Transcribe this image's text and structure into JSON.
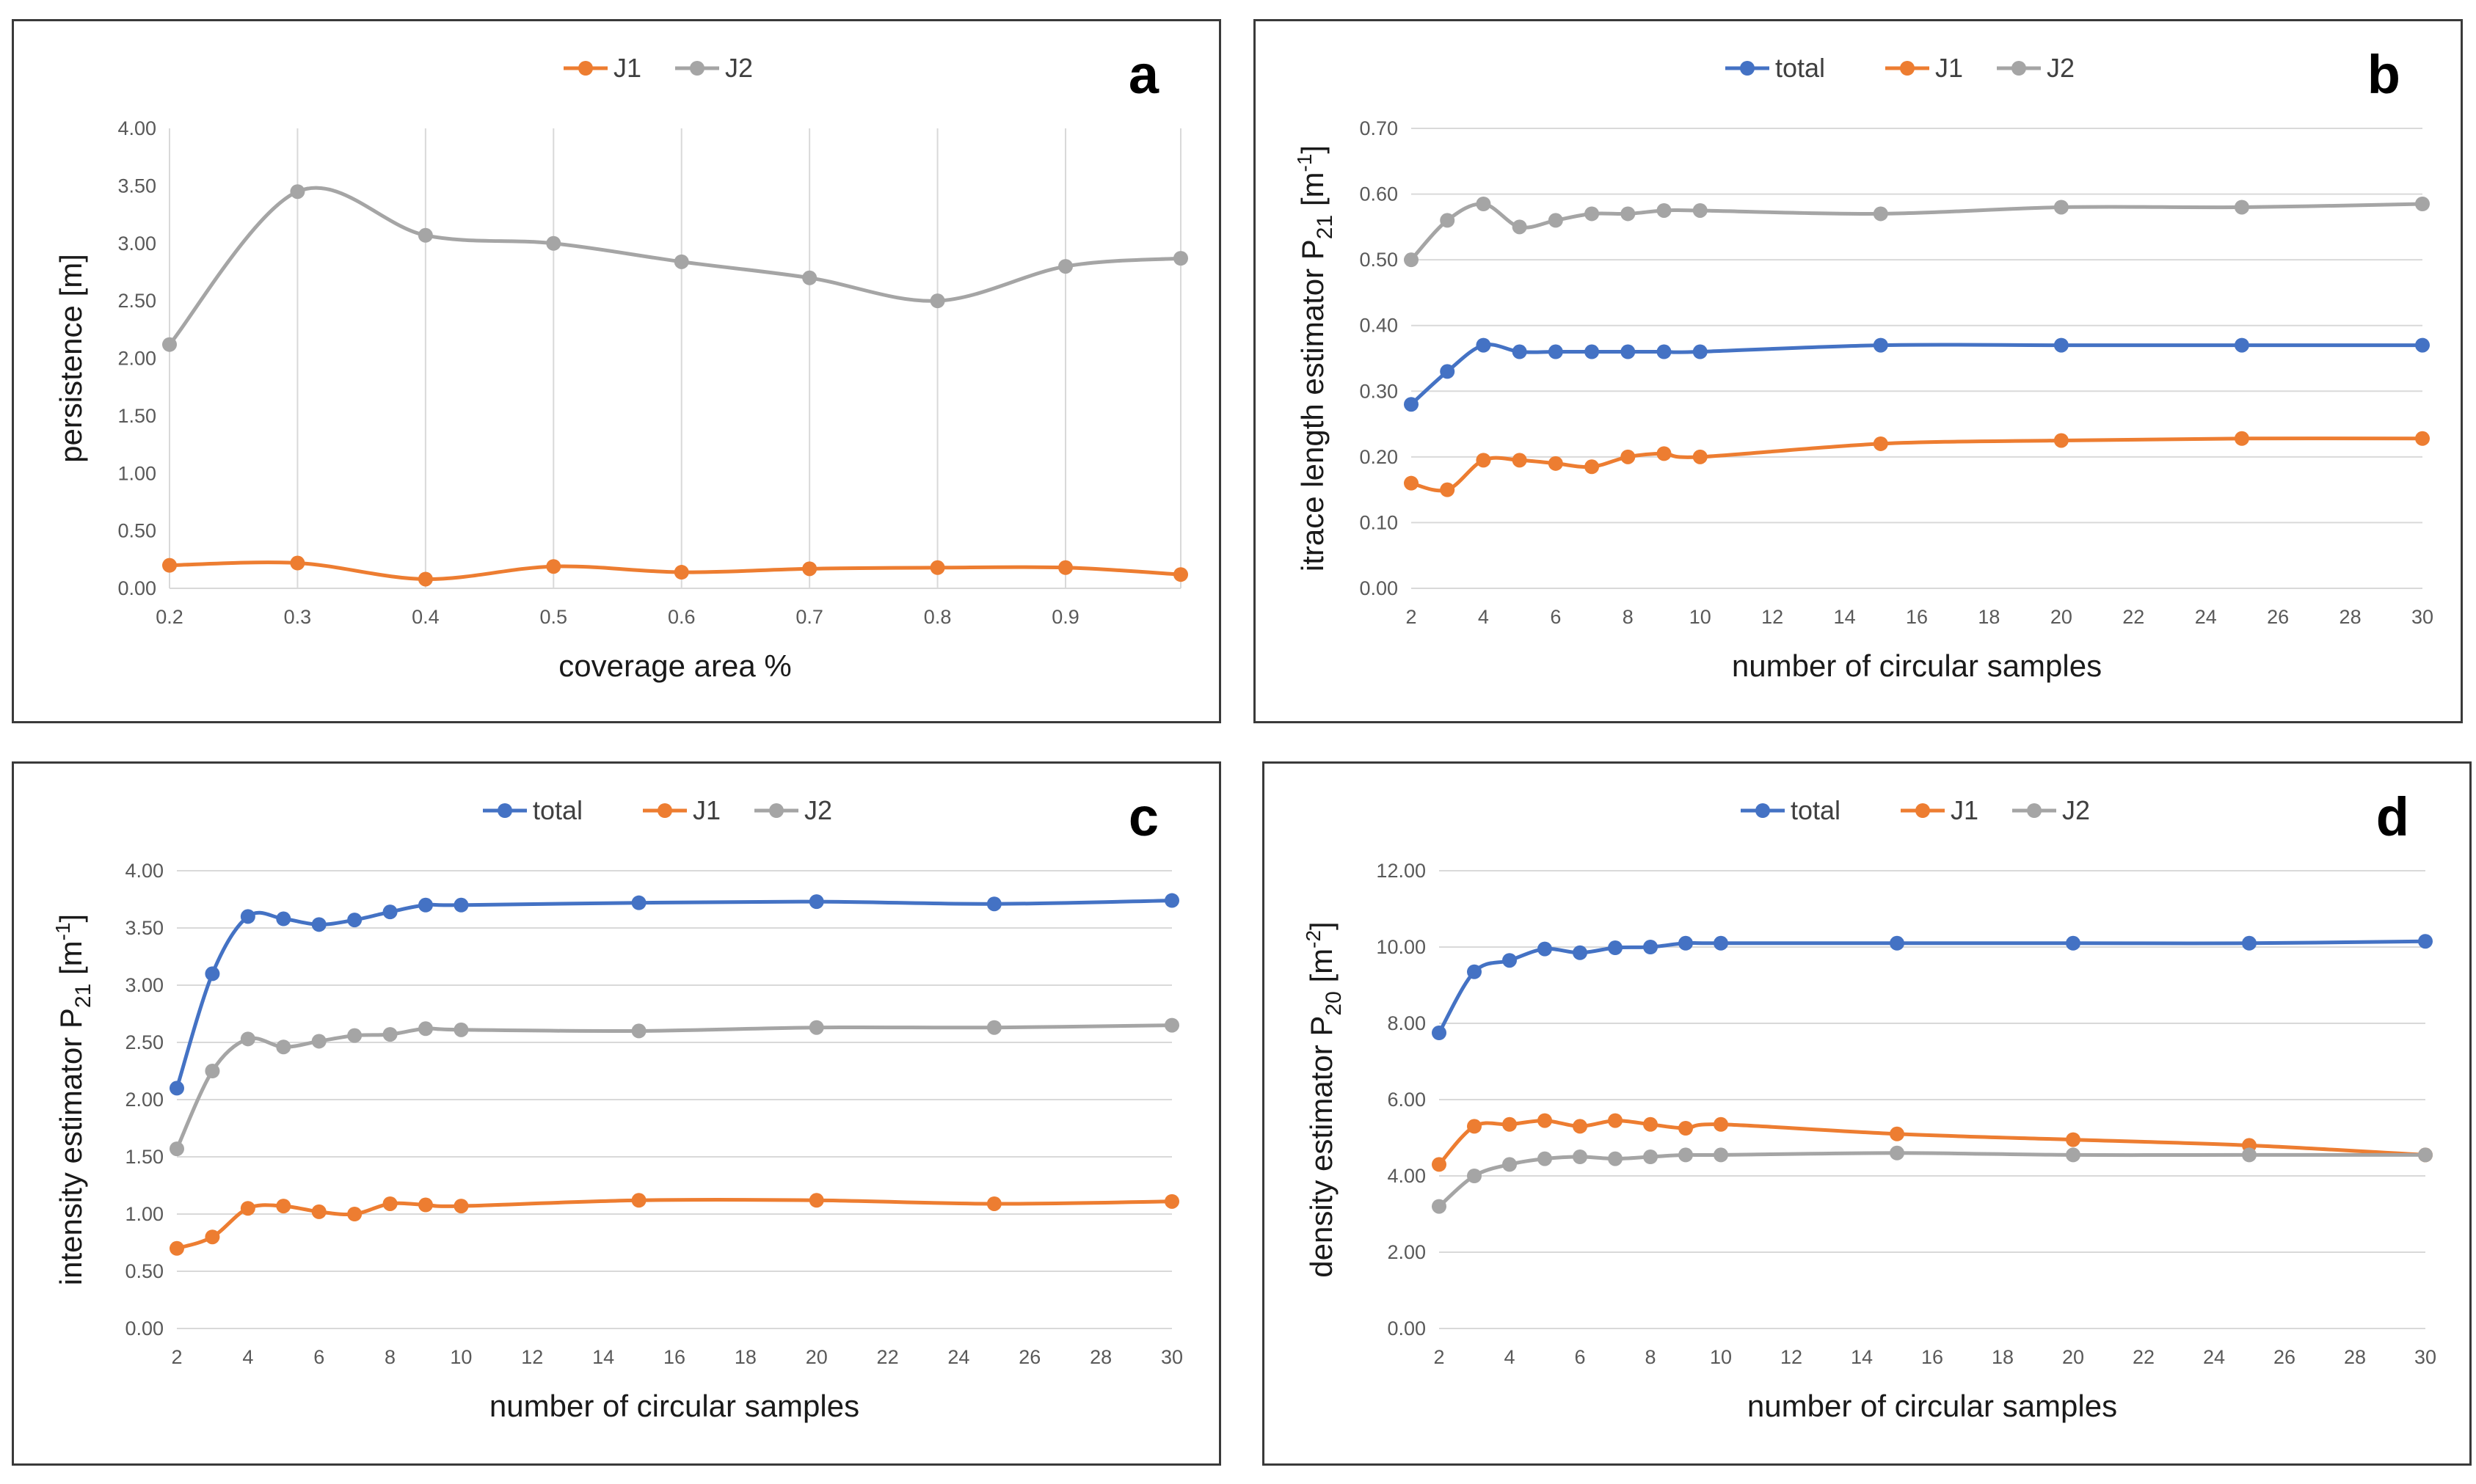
{
  "colors": {
    "total": "#4472C4",
    "J1": "#ED7D31",
    "J2": "#A5A5A5"
  },
  "chart_data": [
    {
      "id": "a",
      "panel_label": "a",
      "type": "line",
      "x": [
        0.2,
        0.3,
        0.4,
        0.5,
        0.6,
        0.7,
        0.8,
        0.9,
        0.99
      ],
      "xlim": [
        0.2,
        0.99
      ],
      "xticks": [
        0.2,
        0.3,
        0.4,
        0.5,
        0.6,
        0.7,
        0.8,
        0.9
      ],
      "xtick_labels": [
        "0.2",
        "0.3",
        "0.4",
        "0.5",
        "0.6",
        "0.7",
        "0.8",
        "0.9"
      ],
      "ylim": [
        0,
        4
      ],
      "yticks": [
        0,
        0.5,
        1,
        1.5,
        2,
        2.5,
        3,
        3.5,
        4
      ],
      "ytick_labels": [
        "0.00",
        "0.50",
        "1.00",
        "1.50",
        "2.00",
        "2.50",
        "3.00",
        "3.50",
        "4.00"
      ],
      "xlabel": "coverage area %",
      "ylabel": "persistence [m]",
      "grid": "vertical",
      "legend": "top-center",
      "series": [
        {
          "name": "J1",
          "color_key": "J1",
          "values": [
            0.2,
            0.22,
            0.08,
            0.19,
            0.14,
            0.17,
            0.18,
            0.18,
            0.12
          ]
        },
        {
          "name": "J2",
          "color_key": "J2",
          "values": [
            2.12,
            3.45,
            3.07,
            3.0,
            2.84,
            2.7,
            2.5,
            2.8,
            2.87
          ]
        }
      ]
    },
    {
      "id": "b",
      "panel_label": "b",
      "type": "line",
      "x": [
        2,
        3,
        4,
        5,
        6,
        7,
        8,
        9,
        10,
        15,
        20,
        25,
        30
      ],
      "xlim": [
        2,
        30
      ],
      "xticks": [
        2,
        4,
        6,
        8,
        10,
        12,
        14,
        16,
        18,
        20,
        22,
        24,
        26,
        28,
        30
      ],
      "xtick_labels": [
        "2",
        "4",
        "6",
        "8",
        "10",
        "12",
        "14",
        "16",
        "18",
        "20",
        "22",
        "24",
        "26",
        "28",
        "30"
      ],
      "ylim": [
        0,
        0.7
      ],
      "yticks": [
        0,
        0.1,
        0.2,
        0.3,
        0.4,
        0.5,
        0.6,
        0.7
      ],
      "ytick_labels": [
        "0.00",
        "0.10",
        "0.20",
        "0.30",
        "0.40",
        "0.50",
        "0.60",
        "0.70"
      ],
      "xlabel": "number of circular samples",
      "ylabel": "itrace length estimator P21 [m-1]",
      "ylabel_parts": {
        "pre": "itrace length estimator P",
        "sub": "21",
        "mid": " [m",
        "sup": "-1",
        "post": "]"
      },
      "grid": "horizontal",
      "legend": "top-center",
      "series": [
        {
          "name": "total",
          "color_key": "total",
          "values": [
            0.28,
            0.33,
            0.37,
            0.36,
            0.36,
            0.36,
            0.36,
            0.36,
            0.36,
            0.37,
            0.37,
            0.37,
            0.37
          ]
        },
        {
          "name": "J1",
          "color_key": "J1",
          "values": [
            0.16,
            0.15,
            0.195,
            0.195,
            0.19,
            0.185,
            0.2,
            0.205,
            0.2,
            0.22,
            0.225,
            0.228,
            0.228
          ]
        },
        {
          "name": "J2",
          "color_key": "J2",
          "values": [
            0.5,
            0.56,
            0.585,
            0.55,
            0.56,
            0.57,
            0.57,
            0.575,
            0.575,
            0.57,
            0.58,
            0.58,
            0.585
          ]
        }
      ]
    },
    {
      "id": "c",
      "panel_label": "c",
      "type": "line",
      "x": [
        2,
        3,
        4,
        5,
        6,
        7,
        8,
        9,
        10,
        15,
        20,
        25,
        30
      ],
      "xlim": [
        2,
        30
      ],
      "xticks": [
        2,
        4,
        6,
        8,
        10,
        12,
        14,
        16,
        18,
        20,
        22,
        24,
        26,
        28,
        30
      ],
      "xtick_labels": [
        "2",
        "4",
        "6",
        "8",
        "10",
        "12",
        "14",
        "16",
        "18",
        "20",
        "22",
        "24",
        "26",
        "28",
        "30"
      ],
      "ylim": [
        0,
        4
      ],
      "yticks": [
        0,
        0.5,
        1,
        1.5,
        2,
        2.5,
        3,
        3.5,
        4
      ],
      "ytick_labels": [
        "0.00",
        "0.50",
        "1.00",
        "1.50",
        "2.00",
        "2.50",
        "3.00",
        "3.50",
        "4.00"
      ],
      "xlabel": "number of circular samples",
      "ylabel": "intensity estimator P21 [m-1]",
      "ylabel_parts": {
        "pre": "intensity estimator P",
        "sub": "21",
        "mid": " [m",
        "sup": "-1",
        "post": "]"
      },
      "grid": "horizontal",
      "legend": "top-center",
      "series": [
        {
          "name": "total",
          "color_key": "total",
          "values": [
            2.1,
            3.1,
            3.6,
            3.58,
            3.53,
            3.57,
            3.64,
            3.7,
            3.7,
            3.72,
            3.73,
            3.71,
            3.74
          ]
        },
        {
          "name": "J1",
          "color_key": "J1",
          "values": [
            0.7,
            0.8,
            1.05,
            1.07,
            1.02,
            1.0,
            1.09,
            1.08,
            1.07,
            1.12,
            1.12,
            1.09,
            1.11
          ]
        },
        {
          "name": "J2",
          "color_key": "J2",
          "values": [
            1.57,
            2.25,
            2.53,
            2.46,
            2.51,
            2.56,
            2.57,
            2.62,
            2.61,
            2.6,
            2.63,
            2.63,
            2.65
          ]
        }
      ]
    },
    {
      "id": "d",
      "panel_label": "d",
      "type": "line",
      "x": [
        2,
        3,
        4,
        5,
        6,
        7,
        8,
        9,
        10,
        15,
        20,
        25,
        30
      ],
      "xlim": [
        2,
        30
      ],
      "xticks": [
        2,
        4,
        6,
        8,
        10,
        12,
        14,
        16,
        18,
        20,
        22,
        24,
        26,
        28,
        30
      ],
      "xtick_labels": [
        "2",
        "4",
        "6",
        "8",
        "10",
        "12",
        "14",
        "16",
        "18",
        "20",
        "22",
        "24",
        "26",
        "28",
        "30"
      ],
      "ylim": [
        0,
        12
      ],
      "yticks": [
        0,
        2,
        4,
        6,
        8,
        10,
        12
      ],
      "ytick_labels": [
        "0.00",
        "2.00",
        "4.00",
        "6.00",
        "8.00",
        "10.00",
        "12.00"
      ],
      "xlabel": "number of circular samples",
      "ylabel": "density estimator P20 [m-2]",
      "ylabel_parts": {
        "pre": "density estimator P",
        "sub": "20",
        "mid": " [m",
        "sup": "-2",
        "post": "]"
      },
      "grid": "horizontal",
      "legend": "top-center",
      "series": [
        {
          "name": "total",
          "color_key": "total",
          "values": [
            7.75,
            9.35,
            9.65,
            9.95,
            9.85,
            9.98,
            10.0,
            10.1,
            10.1,
            10.1,
            10.1,
            10.1,
            10.15
          ]
        },
        {
          "name": "J1",
          "color_key": "J1",
          "values": [
            4.3,
            5.3,
            5.35,
            5.45,
            5.3,
            5.45,
            5.35,
            5.25,
            5.35,
            5.1,
            4.95,
            4.8,
            4.55
          ]
        },
        {
          "name": "J2",
          "color_key": "J2",
          "values": [
            3.2,
            4.0,
            4.3,
            4.45,
            4.5,
            4.45,
            4.5,
            4.55,
            4.55,
            4.6,
            4.55,
            4.55,
            4.55
          ]
        }
      ]
    }
  ]
}
